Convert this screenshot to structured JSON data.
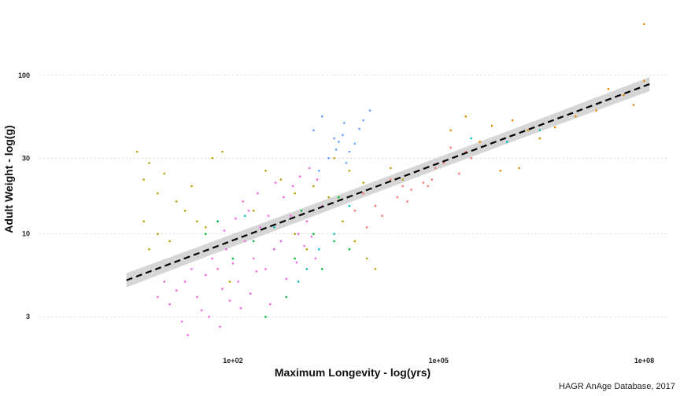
{
  "chart_data": {
    "type": "scatter",
    "title": "",
    "xlabel": "Maximum Longevity - log(yrs)",
    "ylabel": "Adult Weight - log(g)",
    "caption": "HAGR AnAge Database, 2017",
    "x_scale": "log10",
    "y_scale": "log10",
    "xlim": [
      0.15,
      230000000
    ],
    "ylim": [
      1.8,
      260
    ],
    "x_ticks": [
      {
        "value": 100,
        "label": "1e+02"
      },
      {
        "value": 100000,
        "label": "1e+05"
      },
      {
        "value": 100000000,
        "label": "1e+08"
      }
    ],
    "y_ticks": [
      {
        "value": 3,
        "label": "3"
      },
      {
        "value": 10,
        "label": "10"
      },
      {
        "value": 30,
        "label": "30"
      },
      {
        "value": 100,
        "label": "100"
      }
    ],
    "grid": "horizontal dotted",
    "legend": "none",
    "trend_line": {
      "style": "dashed",
      "x": [
        2.8,
        120000000
      ],
      "y": [
        5.1,
        88
      ],
      "confidence_band": true
    },
    "series": [
      {
        "name": "group-olive",
        "color": "#b79f00",
        "points": [
          [
            4,
            33
          ],
          [
            6,
            28
          ],
          [
            5,
            22
          ],
          [
            8,
            18
          ],
          [
            10,
            24
          ],
          [
            15,
            16
          ],
          [
            20,
            14
          ],
          [
            30,
            12
          ],
          [
            8,
            10
          ],
          [
            12,
            9
          ],
          [
            6,
            8
          ],
          [
            20,
            7
          ],
          [
            40,
            11
          ],
          [
            60,
            6
          ],
          [
            90,
            5
          ],
          [
            5,
            12
          ],
          [
            25,
            20
          ],
          [
            50,
            30
          ],
          [
            70,
            33
          ],
          [
            10,
            5
          ],
          [
            200,
            14
          ],
          [
            300,
            25
          ],
          [
            500,
            22
          ],
          [
            800,
            18
          ],
          [
            1500,
            20
          ],
          [
            2500,
            17
          ],
          [
            4000,
            12
          ],
          [
            6000,
            9
          ],
          [
            9000,
            7
          ],
          [
            12000,
            6
          ],
          [
            3000,
            30
          ],
          [
            5000,
            25
          ],
          [
            8000,
            21
          ],
          [
            800,
            10
          ],
          [
            1200,
            8
          ],
          [
            20000,
            26
          ],
          [
            30000,
            22
          ]
        ]
      },
      {
        "name": "group-orange",
        "color": "#f8766d",
        "points": [
          [
            8000,
            18
          ],
          [
            12000,
            15
          ],
          [
            20000,
            22
          ],
          [
            30000,
            20
          ],
          [
            50000,
            25
          ],
          [
            80000,
            22
          ],
          [
            120000,
            28
          ],
          [
            200000,
            24
          ],
          [
            300000,
            30
          ],
          [
            15000,
            13
          ],
          [
            25000,
            17
          ],
          [
            40000,
            19
          ],
          [
            60000,
            21
          ],
          [
            90000,
            26
          ],
          [
            150000,
            35
          ],
          [
            250000,
            33
          ],
          [
            6000,
            14
          ],
          [
            9000,
            11
          ],
          [
            35000,
            16
          ],
          [
            70000,
            20
          ]
        ]
      },
      {
        "name": "group-amber",
        "color": "#e58700",
        "points": [
          [
            150000,
            45
          ],
          [
            400000,
            38
          ],
          [
            800000,
            25
          ],
          [
            1500000,
            26
          ],
          [
            3000000,
            40
          ],
          [
            5000000,
            47
          ],
          [
            10000000,
            55
          ],
          [
            20000000,
            60
          ],
          [
            50000000,
            75
          ],
          [
            100000000,
            92
          ],
          [
            100000000,
            210
          ],
          [
            250000,
            55
          ],
          [
            600000,
            48
          ],
          [
            1200000,
            52
          ],
          [
            2000000,
            45
          ],
          [
            30000000,
            82
          ],
          [
            70000000,
            65
          ]
        ]
      },
      {
        "name": "group-green",
        "color": "#00ba38",
        "points": [
          [
            40,
            10
          ],
          [
            60,
            12
          ],
          [
            100,
            7
          ],
          [
            200,
            9
          ],
          [
            400,
            8
          ],
          [
            800,
            7
          ],
          [
            1500,
            10
          ],
          [
            3000,
            9
          ],
          [
            5000,
            8
          ],
          [
            2000,
            6
          ],
          [
            600,
            4
          ],
          [
            300,
            3
          ],
          [
            1000,
            14
          ],
          [
            3500,
            17
          ]
        ]
      },
      {
        "name": "group-teal",
        "color": "#00bfc4",
        "points": [
          [
            150,
            13
          ],
          [
            400,
            11
          ],
          [
            900,
            5
          ],
          [
            1800,
            8
          ],
          [
            3000,
            10
          ],
          [
            500,
            9
          ],
          [
            1200,
            6
          ],
          [
            5000,
            15
          ],
          [
            300000,
            40
          ],
          [
            1000000,
            38
          ],
          [
            3000000,
            45
          ]
        ]
      },
      {
        "name": "group-blue",
        "color": "#619cff",
        "points": [
          [
            1500,
            45
          ],
          [
            2000,
            55
          ],
          [
            3000,
            40
          ],
          [
            3500,
            38
          ],
          [
            4000,
            42
          ],
          [
            5000,
            33
          ],
          [
            6000,
            37
          ],
          [
            2500,
            30
          ],
          [
            4500,
            28
          ],
          [
            8000,
            52
          ],
          [
            10000,
            60
          ],
          [
            1800,
            25
          ],
          [
            7000,
            46
          ],
          [
            3200,
            34
          ],
          [
            4200,
            50
          ]
        ]
      },
      {
        "name": "group-magenta",
        "color": "#f564e3",
        "points": [
          [
            8,
            4
          ],
          [
            10,
            5
          ],
          [
            12,
            3.6
          ],
          [
            15,
            4.4
          ],
          [
            20,
            5
          ],
          [
            25,
            6
          ],
          [
            30,
            4
          ],
          [
            35,
            3.3
          ],
          [
            40,
            5.5
          ],
          [
            50,
            7
          ],
          [
            60,
            6
          ],
          [
            70,
            4.5
          ],
          [
            80,
            8
          ],
          [
            100,
            6.5
          ],
          [
            120,
            5
          ],
          [
            150,
            9
          ],
          [
            200,
            7
          ],
          [
            250,
            11
          ],
          [
            300,
            6
          ],
          [
            400,
            8
          ],
          [
            500,
            9
          ],
          [
            700,
            13
          ],
          [
            900,
            10
          ],
          [
            1200,
            12
          ],
          [
            1600,
            7
          ],
          [
            2000,
            15
          ],
          [
            18,
            2.8
          ],
          [
            22,
            2.3
          ],
          [
            45,
            3
          ],
          [
            65,
            2.6
          ],
          [
            90,
            3.8
          ],
          [
            130,
            3.4
          ],
          [
            180,
            4.2
          ],
          [
            220,
            5.8
          ],
          [
            350,
            3.6
          ],
          [
            600,
            5.2
          ],
          [
            850,
            6.6
          ],
          [
            1100,
            8.4
          ],
          [
            1400,
            9.6
          ],
          [
            140,
            16
          ],
          [
            230,
            18
          ],
          [
            420,
            21
          ],
          [
            330,
            13
          ],
          [
            550,
            17
          ],
          [
            750,
            20
          ],
          [
            950,
            23
          ],
          [
            1300,
            26
          ],
          [
            1700,
            22
          ],
          [
            75,
            10.5
          ],
          [
            110,
            12.5
          ],
          [
            170,
            14
          ]
        ]
      }
    ]
  }
}
